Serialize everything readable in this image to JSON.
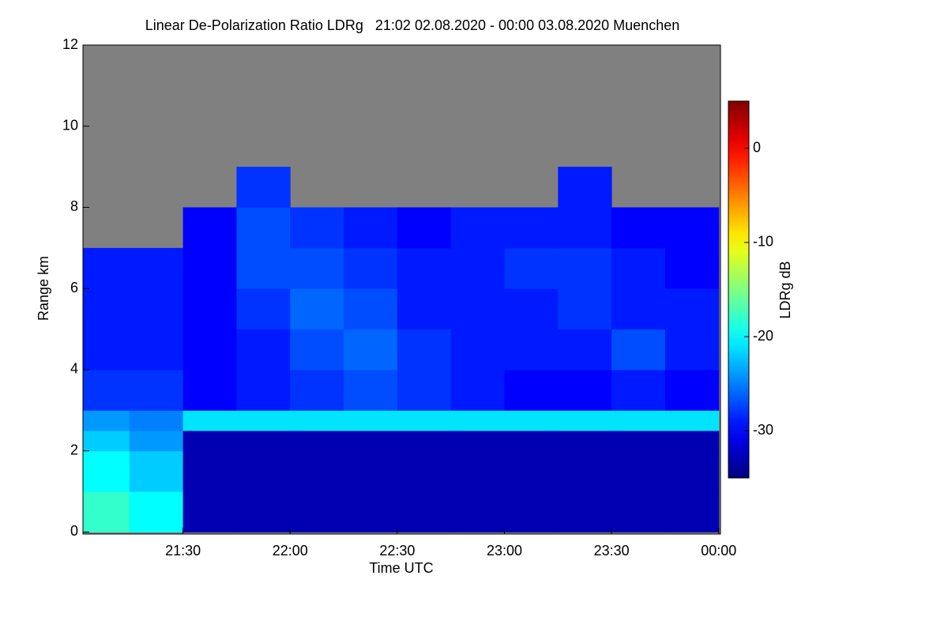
{
  "chart_data": {
    "type": "heatmap",
    "title": "Linear De-Polarization Ratio LDRg   21:02 02.08.2020 - 00:00 03.08.2020 Muenchen",
    "xlabel": "Time UTC",
    "ylabel": "Range km",
    "colorbar_label": "LDRg dB",
    "colormap": "jet",
    "missing_color": "#808080",
    "xlim": [
      1262,
      1440.5
    ],
    "xticks": [
      {
        "value": 1290,
        "label": "21:30"
      },
      {
        "value": 1320,
        "label": "22:00"
      },
      {
        "value": 1350,
        "label": "22:30"
      },
      {
        "value": 1380,
        "label": "23:00"
      },
      {
        "value": 1410,
        "label": "23:30"
      },
      {
        "value": 1440,
        "label": "00:00"
      }
    ],
    "ylim": [
      -0.05,
      12
    ],
    "yticks": [
      0,
      2,
      4,
      6,
      8,
      10,
      12
    ],
    "clim": [
      -35,
      5
    ],
    "cticks": [
      0,
      -10,
      -20,
      -30
    ],
    "x_bins": [
      1262,
      1275,
      1290,
      1305,
      1320,
      1335,
      1350,
      1365,
      1380,
      1395,
      1410,
      1425,
      1440
    ],
    "y_bins": [
      0,
      1,
      2,
      2.5,
      3,
      4,
      5,
      6,
      7,
      8,
      9,
      10,
      12
    ],
    "z": [
      [
        -18,
        -20,
        -33,
        -33,
        -33,
        -33,
        -33,
        -33,
        -33,
        -33,
        -33,
        -33
      ],
      [
        -20,
        -22,
        -33,
        -33,
        -33,
        -33,
        -33,
        -33,
        -33,
        -33,
        -33,
        -33
      ],
      [
        -22,
        -24,
        -33,
        -33,
        -33,
        -33,
        -33,
        -33,
        -33,
        -33,
        -33,
        -33
      ],
      [
        -24,
        -25,
        -21,
        -21,
        -21,
        -21,
        -21,
        -21,
        -21,
        -21,
        -21,
        -21
      ],
      [
        -28,
        -28,
        -30,
        -29,
        -28,
        -27,
        -28,
        -29,
        -30,
        -30,
        -29,
        -30
      ],
      [
        -29,
        -29,
        -30,
        -29,
        -27,
        -26,
        -28,
        -29,
        -29,
        -29,
        -27,
        -29
      ],
      [
        -29,
        -29,
        -30,
        -28,
        -26,
        -27,
        -29,
        -29,
        -29,
        -28,
        -29,
        -29
      ],
      [
        -29,
        -29,
        -30,
        -27,
        -27,
        -28,
        -29,
        -29,
        -28,
        -28,
        -29,
        -30
      ],
      [
        null,
        null,
        -30,
        -27,
        -28,
        -29,
        -30,
        -29,
        -29,
        -29,
        -30,
        -30
      ],
      [
        null,
        null,
        null,
        -28,
        null,
        null,
        null,
        null,
        null,
        -29,
        null,
        null
      ],
      [
        null,
        null,
        null,
        null,
        null,
        null,
        null,
        null,
        null,
        null,
        null,
        null
      ],
      [
        null,
        null,
        null,
        null,
        null,
        null,
        null,
        null,
        null,
        null,
        null,
        null
      ]
    ]
  }
}
